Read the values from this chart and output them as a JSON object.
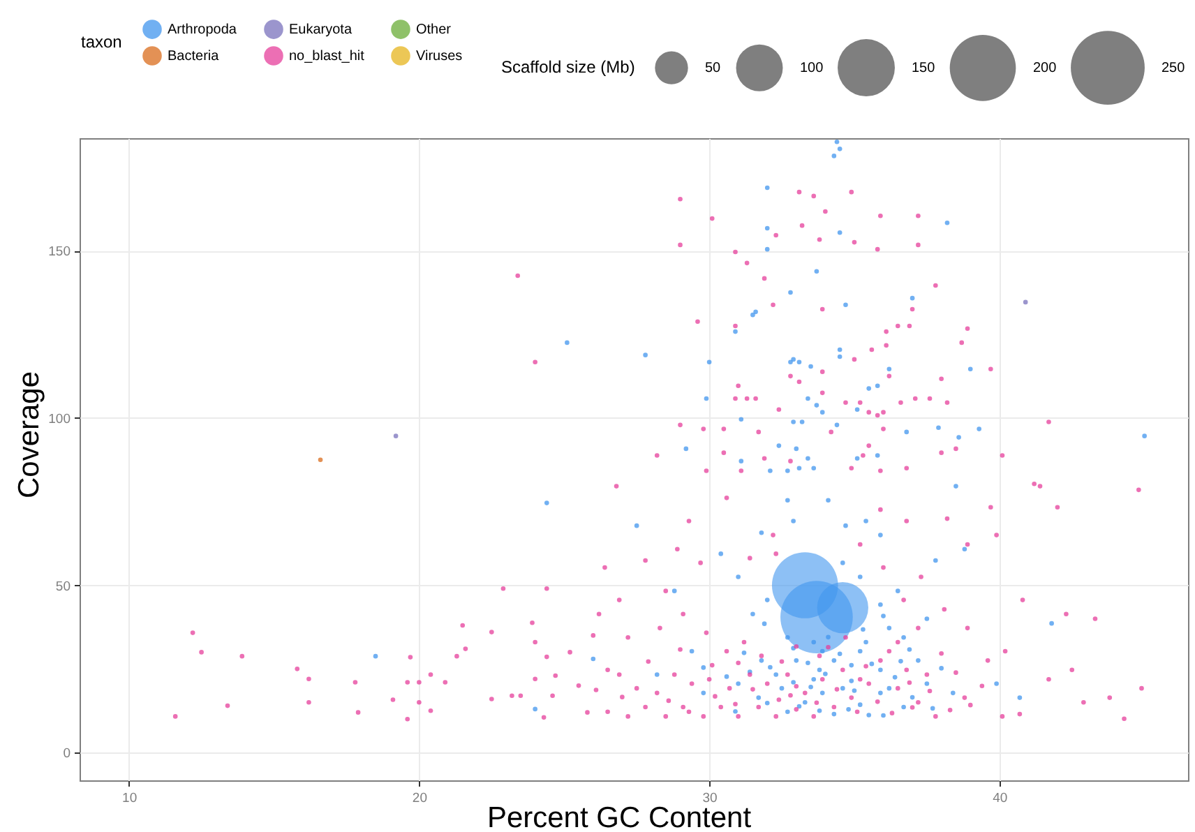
{
  "chart_data": {
    "type": "bubble",
    "xlabel": "Percent GC Content",
    "ylabel": "Coverage",
    "legend_title": [
      "taxon",
      "Scaffold size (Mb)"
    ],
    "xlim": [
      8.3,
      46.5
    ],
    "xticks": [
      10,
      20,
      30,
      40
    ],
    "ylim": [
      -8.3,
      183.6
    ],
    "yticks": [
      0,
      50,
      100,
      150
    ],
    "grid": true,
    "legend": "top",
    "marker": "circle",
    "size_legend": [
      50,
      100,
      150,
      200,
      250
    ],
    "series": [
      {
        "color": "#4196ee",
        "x": [
          33.7,
          33.3,
          34.6
        ],
        "values": [
          40.5,
          50,
          43.3
        ],
        "sizes": [
          240,
          200,
          120
        ]
      },
      {
        "name": "Arthropoda",
        "type": "scatter",
        "color": "#4196ee",
        "x": [
          34.4,
          34.5,
          34.3,
          32.0,
          38.2,
          32.0,
          34.5,
          32.0,
          33.7,
          32.8,
          34.7,
          37.0,
          31.6,
          31.5,
          30.9,
          27.8,
          30.0,
          34.5,
          34.5,
          32.9,
          32.8,
          33.1,
          33.5,
          36.2,
          39.0,
          35.8,
          35.5,
          29.9,
          33.4,
          33.7,
          33.9,
          35.1,
          31.1,
          32.9,
          33.2,
          45.0,
          29.2,
          34.4,
          36.8,
          37.9,
          38.6,
          39.3,
          32.4,
          33.0,
          33.4,
          33.1,
          33.6,
          32.7,
          32.1,
          31.1,
          35.1,
          35.8,
          38.5,
          25.1,
          24.4,
          18.5,
          32.7,
          34.1,
          31.8,
          32.9,
          34.7,
          35.4,
          35.9,
          37.8,
          38.8,
          30.4,
          31.0,
          34.6,
          35.2,
          36.5,
          35.9,
          31.5,
          32.0,
          36.2,
          37.5,
          36.7,
          35.4,
          33.9,
          33.0,
          34.9,
          35.9,
          33.6,
          32.3,
          34.6,
          36.2,
          37.5,
          38.4,
          31.0,
          31.7,
          33.3,
          35.2,
          36.7,
          32.7,
          34.3,
          36.0,
          39.9,
          40.7,
          41.8,
          28.8,
          27.5,
          29.4,
          28.2,
          29.8,
          33.6,
          34.3,
          35.2,
          32.7,
          33.8,
          31.8,
          37.2,
          35.9,
          33.9,
          32.5,
          24.0,
          26.0,
          32.1,
          32.9,
          33.4,
          34.0,
          34.5,
          35.0,
          35.6,
          36.4,
          33.1,
          33.8,
          34.8,
          35.5,
          32.0,
          31.4,
          30.6,
          37.0,
          36.9,
          38.0,
          29.8,
          31.2,
          34.1,
          32.9,
          35.3,
          36.0,
          31.9,
          33.5,
          34.9,
          36.6,
          37.7,
          30.9
        ],
        "values": [
          182.5,
          180.4,
          178.3,
          168.8,
          158.3,
          156.7,
          155.4,
          150.4,
          143.8,
          137.5,
          133.8,
          135.8,
          131.7,
          130.8,
          125.8,
          118.8,
          116.7,
          120.4,
          118.3,
          117.5,
          116.7,
          116.7,
          115.4,
          114.6,
          114.6,
          109.6,
          108.8,
          105.8,
          105.8,
          103.8,
          101.7,
          102.5,
          99.6,
          98.8,
          98.8,
          94.6,
          90.8,
          97.9,
          95.8,
          97.1,
          94.2,
          96.7,
          91.7,
          90.8,
          87.9,
          85,
          85,
          84.2,
          84.2,
          87.1,
          87.9,
          88.8,
          79.6,
          122.5,
          74.6,
          28.8,
          75.4,
          75.4,
          65.7,
          69.2,
          67.8,
          69.2,
          65,
          57.4,
          60.8,
          59.4,
          52.5,
          56.7,
          52.5,
          48.3,
          44.2,
          41.4,
          45.6,
          37.2,
          40,
          34.4,
          33,
          30.3,
          27.5,
          26.1,
          24.7,
          21.9,
          23.3,
          19.2,
          19.2,
          20.6,
          17.8,
          20.6,
          16.4,
          15,
          14.3,
          13.6,
          12.2,
          11.5,
          11.1,
          20.6,
          16.4,
          38.6,
          48.3,
          67.8,
          30.3,
          23.3,
          17.8,
          33,
          27.5,
          30.3,
          34.4,
          24.7,
          27.5,
          27.5,
          17.8,
          17.8,
          19.2,
          13,
          28,
          25.5,
          21,
          26.8,
          23.5,
          29.5,
          18.5,
          26.5,
          22.5,
          13.8,
          12.5,
          12.9,
          11.2,
          14.8,
          24.1,
          22.7,
          16.5,
          30.8,
          25.2,
          25.4,
          29.8,
          34.5,
          31.2,
          36.8,
          40.8,
          38.5,
          19.6,
          21.4,
          27.3,
          13.2,
          12.3
        ]
      },
      {
        "name": "Bacteria",
        "type": "scatter",
        "color": "#d96c1c",
        "x": [
          16.6
        ],
        "values": [
          87.5
        ]
      },
      {
        "name": "Eukaryota",
        "type": "scatter",
        "color": "#7a71bc",
        "x": [
          19.2,
          40.9
        ],
        "values": [
          94.6,
          134.6
        ]
      },
      {
        "name": "no_blast_hit",
        "type": "scatter",
        "color": "#e63f9b",
        "x": [
          29.0,
          33.1,
          33.6,
          34.9,
          34.0,
          30.1,
          35.9,
          37.2,
          33.2,
          32.3,
          33.8,
          35.0,
          35.8,
          37.2,
          29.0,
          30.9,
          31.3,
          31.9,
          37.8,
          32.2,
          37.0,
          33.9,
          29.6,
          30.9,
          36.5,
          36.9,
          36.1,
          38.9,
          38.7,
          36.1,
          35.6,
          35.0,
          33.9,
          36.2,
          39.7,
          38.0,
          32.8,
          33.1,
          31.0,
          30.9,
          31.3,
          31.6,
          33.9,
          34.7,
          35.2,
          36.6,
          37.1,
          37.6,
          38.2,
          32.4,
          35.5,
          35.8,
          36.0,
          41.7,
          29.0,
          29.8,
          30.5,
          31.7,
          34.2,
          36.0,
          38.5,
          38.0,
          40.1,
          28.2,
          30.5,
          31.9,
          32.8,
          29.9,
          31.1,
          34.9,
          35.5,
          35.3,
          35.9,
          36.8,
          26.8,
          41.4,
          44.8,
          23.4,
          24.0,
          11.6,
          12.2,
          12.5,
          13.4,
          13.9,
          15.8,
          16.2,
          16.2,
          17.8,
          17.9,
          19.1,
          19.6,
          19.6,
          19.7,
          20.0,
          20.0,
          20.4,
          20.4,
          20.9,
          21.3,
          21.5,
          21.6,
          22.5,
          22.5,
          22.9,
          23.2,
          23.5,
          23.9,
          24.0,
          24.0,
          24.3,
          24.4,
          24.4,
          24.6,
          24.7,
          30.6,
          29.3,
          28.9,
          27.8,
          26.4,
          26.9,
          28.5,
          29.7,
          31.4,
          32.2,
          35.9,
          36.8,
          38.2,
          39.7,
          39.9,
          41.2,
          42.0,
          40.8,
          43.3,
          42.3,
          40.2,
          41.7,
          42.9,
          44.3,
          44.9,
          43.8,
          42.5,
          38.9,
          37.3,
          38.1,
          38.9,
          39.6,
          38.8,
          40.1,
          40.7,
          37.8,
          37.2,
          36.5,
          37.5,
          36.2,
          36.8,
          35.5,
          34.9,
          34.3,
          33.6,
          33.0,
          32.3,
          31.7,
          31.0,
          30.4,
          29.8,
          29.1,
          28.5,
          27.8,
          27.2,
          26.5,
          27.5,
          26.9,
          28.2,
          28.8,
          29.4,
          30.1,
          30.7,
          31.4,
          32.0,
          32.7,
          33.3,
          33.9,
          34.6,
          35.2,
          35.9,
          36.5,
          37.2,
          28.3,
          29.1,
          29.9,
          30.6,
          31.2,
          31.8,
          33.0,
          33.8,
          34.7,
          27.2,
          26.5,
          26.2,
          32.3,
          35.2,
          36.0,
          36.7,
          25.5,
          25.8,
          25.2,
          26.0,
          28.6,
          29.3,
          30.2,
          30.9,
          31.5,
          32.4,
          33.0,
          33.7,
          34.4,
          35.1,
          35.8,
          36.3,
          37.0,
          37.6,
          38.3,
          39.0,
          39.4,
          38.5,
          27.9,
          29.0,
          30.0,
          31.0,
          32.5,
          34.1,
          35.4,
          36.9,
          38.0,
          27.0,
          26.1,
          32.8
        ],
        "values": [
          165.4,
          167.5,
          166.3,
          167.5,
          161.7,
          159.6,
          160.4,
          160.4,
          157.5,
          154.6,
          153.3,
          152.5,
          150.4,
          151.7,
          151.7,
          149.6,
          146.3,
          141.7,
          139.6,
          133.8,
          132.5,
          132.5,
          128.8,
          127.5,
          127.5,
          127.5,
          125.8,
          126.7,
          122.5,
          121.7,
          120.4,
          117.5,
          113.8,
          112.5,
          114.6,
          111.7,
          112.5,
          110.8,
          109.6,
          105.8,
          105.8,
          105.8,
          107.5,
          104.6,
          104.6,
          104.6,
          105.8,
          105.8,
          104.6,
          102.5,
          101.7,
          100.8,
          101.7,
          98.8,
          97.9,
          96.7,
          96.7,
          95.8,
          95.8,
          96.7,
          90.8,
          89.6,
          88.8,
          88.8,
          89.6,
          87.9,
          87.1,
          84.2,
          84.2,
          85,
          91.7,
          88.8,
          84.2,
          85,
          79.6,
          79.6,
          78.5,
          142.5,
          116.7,
          10.8,
          35.8,
          30,
          14,
          28.8,
          25,
          22,
          15,
          21,
          12,
          15.8,
          21,
          10,
          28.5,
          15,
          21,
          23.3,
          12.5,
          21,
          28.8,
          38,
          31,
          36,
          16,
          49,
          17,
          17,
          38.8,
          33,
          22,
          10.5,
          49,
          28.6,
          17,
          23,
          76.1,
          69.2,
          60.8,
          57.4,
          55.3,
          45.6,
          48.3,
          56.7,
          58.1,
          65,
          72.6,
          69.2,
          69.9,
          73.3,
          65,
          80.3,
          73.3,
          45.6,
          40,
          41.4,
          30.3,
          21.9,
          15,
          10.1,
          19.2,
          16.4,
          24.7,
          62.2,
          52.5,
          42.8,
          37.2,
          27.5,
          16.4,
          10.8,
          11.5,
          10.8,
          15,
          19.2,
          23.3,
          30.3,
          24.7,
          20.6,
          16.4,
          13.6,
          10.8,
          12.9,
          10.8,
          13.6,
          10.8,
          13.6,
          10.8,
          13.6,
          10.8,
          13.6,
          10.8,
          12.2,
          19.2,
          23.3,
          17.8,
          23.3,
          20.6,
          26.1,
          19.2,
          23.3,
          20.6,
          23.3,
          17.8,
          21.9,
          24.7,
          21.9,
          27.5,
          33,
          37.2,
          37.2,
          41.4,
          35.8,
          30.3,
          33,
          28.9,
          31.7,
          28.9,
          34.4,
          34.4,
          24.7,
          41.4,
          59.4,
          62.2,
          55.3,
          45.6,
          20,
          12,
          30,
          35,
          15.5,
          12.2,
          16.8,
          14.5,
          18.9,
          15.8,
          19.8,
          14.9,
          18.9,
          12.2,
          15.2,
          11.8,
          13.5,
          18.4,
          12.7,
          14.2,
          19.9,
          23.9,
          27.2,
          30.8,
          21.9,
          26.8,
          27.2,
          31.5,
          25.8,
          20.9,
          29.6,
          16.6,
          18.7,
          17.1
        ]
      },
      {
        "name": "Other",
        "type": "scatter",
        "color": "#69ac37"
      },
      {
        "name": "Viruses",
        "type": "scatter",
        "color": "#e6b41e"
      }
    ]
  }
}
